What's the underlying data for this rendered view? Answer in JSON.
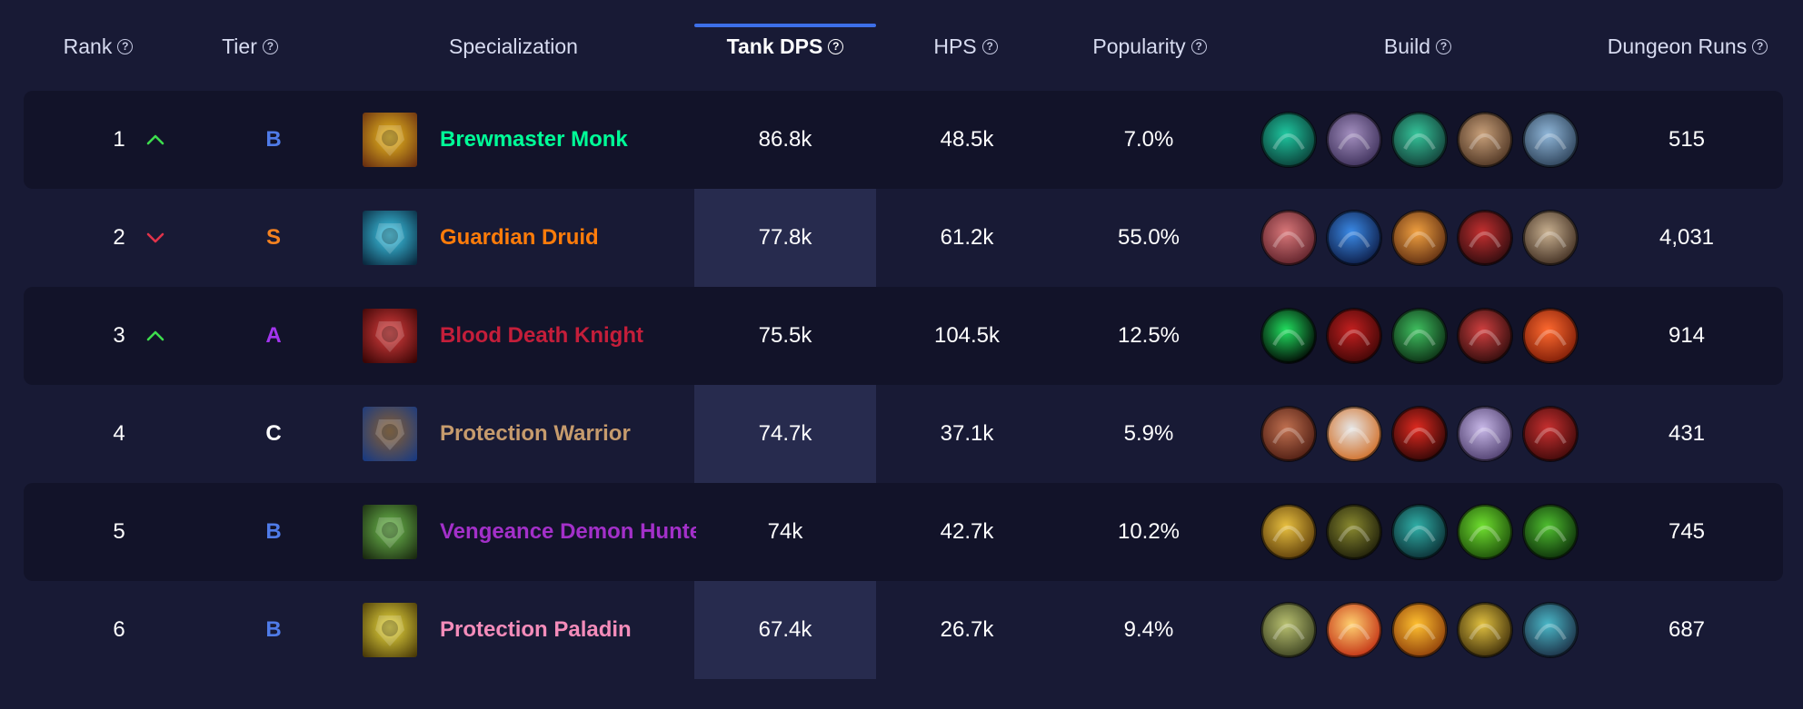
{
  "columns": [
    {
      "key": "rank",
      "label": "Rank",
      "help": "?"
    },
    {
      "key": "tier",
      "label": "Tier",
      "help": "?"
    },
    {
      "key": "spec",
      "label": "Specialization"
    },
    {
      "key": "dps",
      "label": "Tank DPS",
      "help": "?",
      "sorted": true
    },
    {
      "key": "hps",
      "label": "HPS",
      "help": "?"
    },
    {
      "key": "pop",
      "label": "Popularity",
      "help": "?"
    },
    {
      "key": "build",
      "label": "Build",
      "help": "?"
    },
    {
      "key": "runs",
      "label": "Dungeon Runs",
      "help": "?"
    }
  ],
  "colors": {
    "background": "#181a35",
    "row_alt": "#121329",
    "sort_accent": "#3d6fe8",
    "arrow_up": "#3ddc4d",
    "arrow_down": "#e0334a",
    "tier_S": "#f58220",
    "tier_A": "#a335ee",
    "tier_B": "#4f7be8",
    "tier_C": "#ffffff"
  },
  "rows": [
    {
      "rank": "1",
      "trend": "up",
      "tier": "B",
      "spec": "Brewmaster Monk",
      "spec_color": "#00ff98",
      "spec_icon": "brewmaster-monk-icon",
      "dps": "86.8k",
      "hps": "48.5k",
      "pop": "7.0%",
      "runs": "515",
      "build": [
        {
          "icon": "teal-swirl-talent-icon",
          "colors": [
            "#1fc7a0",
            "#0a3a34"
          ]
        },
        {
          "icon": "purple-mystic-talent-icon",
          "colors": [
            "#a38fbf",
            "#3a2d57"
          ]
        },
        {
          "icon": "green-monk-talent-icon",
          "colors": [
            "#35c49a",
            "#123b35"
          ]
        },
        {
          "icon": "bronze-shield-talent-icon",
          "colors": [
            "#c8a07a",
            "#4a3120"
          ]
        },
        {
          "icon": "blue-storm-talent-icon",
          "colors": [
            "#8fb6d8",
            "#2a3e55"
          ]
        }
      ]
    },
    {
      "rank": "2",
      "trend": "down",
      "tier": "S",
      "spec": "Guardian Druid",
      "spec_color": "#ff7c0a",
      "spec_icon": "guardian-druid-icon",
      "dps": "77.8k",
      "hps": "61.2k",
      "pop": "55.0%",
      "runs": "4,031",
      "build": [
        {
          "icon": "red-claw-talent-icon",
          "colors": [
            "#d9787a",
            "#5a1e27"
          ]
        },
        {
          "icon": "blue-arcane-talent-icon",
          "colors": [
            "#3b8be8",
            "#0b1840"
          ]
        },
        {
          "icon": "fire-bear-talent-icon",
          "colors": [
            "#f0a040",
            "#5a2a10"
          ]
        },
        {
          "icon": "red-beast-talent-icon",
          "colors": [
            "#c43030",
            "#2a0a0d"
          ]
        },
        {
          "icon": "brown-paw-talent-icon",
          "colors": [
            "#c8b090",
            "#3c2a1e"
          ]
        }
      ]
    },
    {
      "rank": "3",
      "trend": "up",
      "tier": "A",
      "spec": "Blood Death Knight",
      "spec_color": "#c41e3a",
      "spec_icon": "blood-death-knight-icon",
      "dps": "75.5k",
      "hps": "104.5k",
      "pop": "12.5%",
      "runs": "914",
      "build": [
        {
          "icon": "green-portal-talent-icon",
          "colors": [
            "#22e060",
            "#000000"
          ]
        },
        {
          "icon": "crimson-blood-talent-icon",
          "colors": [
            "#c42020",
            "#3a0505"
          ]
        },
        {
          "icon": "green-skull-talent-icon",
          "colors": [
            "#40c060",
            "#0a2a12"
          ]
        },
        {
          "icon": "red-armor-talent-icon",
          "colors": [
            "#d04040",
            "#2a0a0a"
          ]
        },
        {
          "icon": "orange-flame-talent-icon",
          "colors": [
            "#ff6a30",
            "#7a1a05"
          ]
        }
      ]
    },
    {
      "rank": "4",
      "trend": "",
      "tier": "C",
      "spec": "Protection Warrior",
      "spec_color": "#c69b6d",
      "spec_icon": "protection-warrior-icon",
      "dps": "74.7k",
      "hps": "37.1k",
      "pop": "5.9%",
      "runs": "431",
      "build": [
        {
          "icon": "brown-warrior-talent-icon",
          "colors": [
            "#c07050",
            "#4a1a10"
          ]
        },
        {
          "icon": "silver-shield-talent-icon",
          "colors": [
            "#e6e6e6",
            "#d06a20"
          ]
        },
        {
          "icon": "red-slash-talent-icon",
          "colors": [
            "#e02a20",
            "#2a0505"
          ]
        },
        {
          "icon": "pale-banshee-talent-icon",
          "colors": [
            "#c8b8e8",
            "#4a3a6a"
          ]
        },
        {
          "icon": "red-demon-talent-icon",
          "colors": [
            "#c83030",
            "#3a0808"
          ]
        }
      ]
    },
    {
      "rank": "5",
      "trend": "",
      "tier": "B",
      "spec": "Vengeance Demon Hunter",
      "spec_color": "#a330c9",
      "spec_icon": "vengeance-demon-hunter-icon",
      "dps": "74k",
      "hps": "42.7k",
      "pop": "10.2%",
      "runs": "745",
      "build": [
        {
          "icon": "golden-glaive-talent-icon",
          "colors": [
            "#e8c040",
            "#5a3a08"
          ]
        },
        {
          "icon": "olive-creature-talent-icon",
          "colors": [
            "#8a8a30",
            "#1a1a08"
          ]
        },
        {
          "icon": "teal-spirit-talent-icon",
          "colors": [
            "#30b0a8",
            "#0a2a30"
          ]
        },
        {
          "icon": "green-fel-rune-talent-icon",
          "colors": [
            "#70e030",
            "#1a4a08"
          ]
        },
        {
          "icon": "fel-demon-talent-icon",
          "colors": [
            "#50c030",
            "#0a2a08"
          ]
        }
      ]
    },
    {
      "rank": "6",
      "trend": "",
      "tier": "B",
      "spec": "Protection Paladin",
      "spec_color": "#f48cba",
      "spec_icon": "protection-paladin-icon",
      "dps": "67.4k",
      "hps": "26.7k",
      "pop": "9.4%",
      "runs": "687",
      "build": [
        {
          "icon": "stone-guardian-talent-icon",
          "colors": [
            "#b8c070",
            "#3a4020"
          ]
        },
        {
          "icon": "holy-pillar-talent-icon",
          "colors": [
            "#ffd070",
            "#c02a10"
          ]
        },
        {
          "icon": "golden-light-talent-icon",
          "colors": [
            "#ffc030",
            "#8a3a08"
          ]
        },
        {
          "icon": "gold-helm-talent-icon",
          "colors": [
            "#e0c040",
            "#3a2a08"
          ]
        },
        {
          "icon": "blue-wheel-talent-icon",
          "colors": [
            "#4ab8c8",
            "#1a2a40"
          ]
        }
      ]
    }
  ]
}
